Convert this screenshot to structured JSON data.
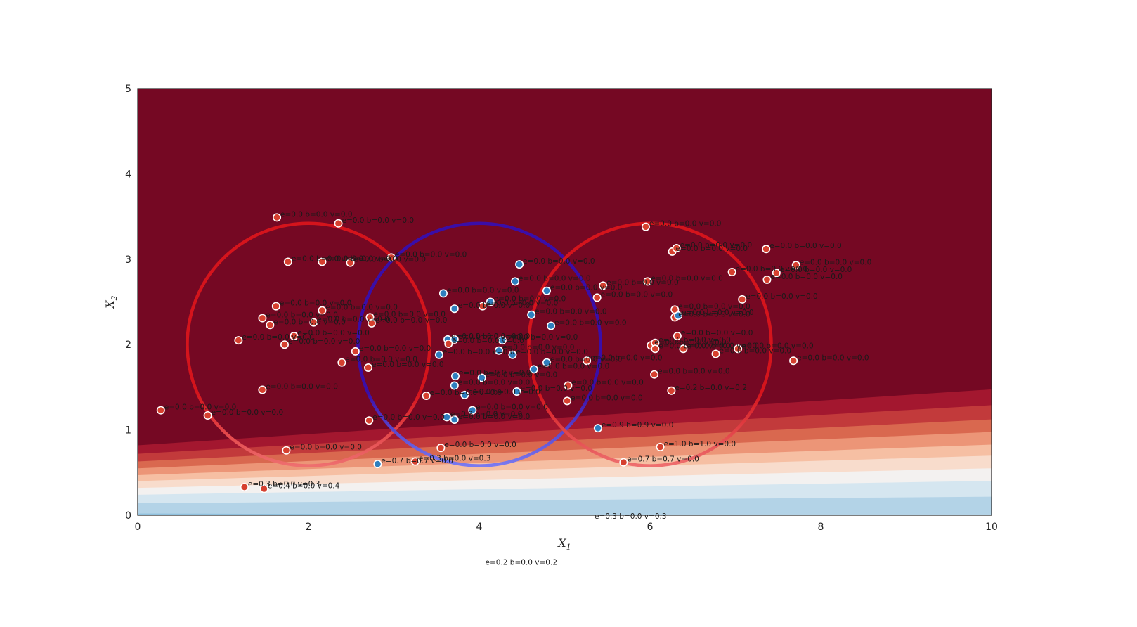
{
  "chart_data": {
    "type": "scatter",
    "title": "",
    "xlabel": "X",
    "xlabel_sub": "1",
    "ylabel": "X",
    "ylabel_sub": "2",
    "xlim": [
      0,
      10
    ],
    "ylim": [
      0,
      5
    ],
    "x_ticks": [
      0,
      2,
      4,
      6,
      8,
      10
    ],
    "y_ticks": [
      0,
      1,
      2,
      3,
      4,
      5
    ],
    "grid": false,
    "colors": {
      "class_red": "#d6402f",
      "class_blue": "#2f7fbf",
      "background_dark_red": "#750823",
      "circle_red": "#d4141c",
      "circle_blue": "#3a0ea8"
    },
    "circles": [
      {
        "cx": 2,
        "cy": 2,
        "r": 1.42,
        "color": "red"
      },
      {
        "cx": 4,
        "cy": 2,
        "r": 1.42,
        "color": "blue"
      },
      {
        "cx": 6,
        "cy": 2,
        "r": 1.42,
        "color": "red"
      }
    ],
    "points": [
      {
        "x": 1.63,
        "y": 3.49,
        "cls": "red",
        "label": "e=0.0 b=0.0 v=0.0"
      },
      {
        "x": 2.35,
        "y": 3.42,
        "cls": "red",
        "label": "e=0.0 b=0.0 v=0.0"
      },
      {
        "x": 2.97,
        "y": 3.02,
        "cls": "red",
        "label": "e=0.0 b=0.0 v=0.0"
      },
      {
        "x": 1.76,
        "y": 2.97,
        "cls": "red",
        "label": "e=0.0 b=0.0 v=0.0"
      },
      {
        "x": 2.16,
        "y": 2.97,
        "cls": "red",
        "label": "e=0.0 b=0.0 v=0.0"
      },
      {
        "x": 2.49,
        "y": 2.96,
        "cls": "red",
        "label": "e=0.0 b=0.0 v=0.0"
      },
      {
        "x": 1.62,
        "y": 2.45,
        "cls": "red",
        "label": "e=0.0 b=0.0 v=0.0"
      },
      {
        "x": 2.16,
        "y": 2.4,
        "cls": "red",
        "label": "e=0.0 b=0.0 v=0.0"
      },
      {
        "x": 1.46,
        "y": 2.31,
        "cls": "red",
        "label": "e=0.0 b=0.0 v=0.0"
      },
      {
        "x": 1.55,
        "y": 2.23,
        "cls": "red",
        "label": "e=0.0 b=0.0 v=0.0"
      },
      {
        "x": 2.06,
        "y": 2.26,
        "cls": "red",
        "label": "e=0.0 b=0.0 v=0.0"
      },
      {
        "x": 2.72,
        "y": 2.32,
        "cls": "red",
        "label": "e=0.0 b=0.0 v=0.0"
      },
      {
        "x": 2.74,
        "y": 2.25,
        "cls": "red",
        "label": "e=0.0 b=0.0 v=0.0"
      },
      {
        "x": 1.83,
        "y": 2.1,
        "cls": "red",
        "label": "e=0.0 b=0.0 v=0.0"
      },
      {
        "x": 1.18,
        "y": 2.05,
        "cls": "red",
        "label": "e=0.0 b=0.0 v=0.0"
      },
      {
        "x": 1.72,
        "y": 2.0,
        "cls": "red",
        "label": "e=0.0 b=0.0 v=0.0"
      },
      {
        "x": 2.55,
        "y": 1.92,
        "cls": "red",
        "label": "e=0.0 b=0.0 v=0.0"
      },
      {
        "x": 2.39,
        "y": 1.79,
        "cls": "red",
        "label": "e=0.0 b=0.0 v=0.0"
      },
      {
        "x": 2.7,
        "y": 1.73,
        "cls": "red",
        "label": "e=0.0 b=0.0 v=0.0"
      },
      {
        "x": 1.46,
        "y": 1.47,
        "cls": "red",
        "label": "e=0.0 b=0.0 v=0.0"
      },
      {
        "x": 0.27,
        "y": 1.23,
        "cls": "red",
        "label": "e=0.0 b=0.0 v=0.0"
      },
      {
        "x": 0.82,
        "y": 1.17,
        "cls": "red",
        "label": "e=0.0 b=0.0 v=0.0"
      },
      {
        "x": 2.71,
        "y": 1.11,
        "cls": "red",
        "label": "e=0.0 b=0.0 v=0.0"
      },
      {
        "x": 1.74,
        "y": 0.76,
        "cls": "red",
        "label": "e=0.0 b=0.0 v=0.0"
      },
      {
        "x": 1.25,
        "y": 0.33,
        "cls": "red",
        "label": "e=0.3 b=0.0 v=0.3"
      },
      {
        "x": 1.48,
        "y": 0.31,
        "cls": "red",
        "label": "e=0.4 b=0.0 v=0.4"
      },
      {
        "x": 3.55,
        "y": 0.79,
        "cls": "red",
        "label": "e=0.0 b=0.0 v=0.0"
      },
      {
        "x": 3.25,
        "y": 0.63,
        "cls": "red",
        "label": "e=0.3 b=0.0 v=0.3"
      },
      {
        "x": 2.81,
        "y": 0.6,
        "cls": "blue",
        "label": "e=0.7 b=0.7 v=0.0"
      },
      {
        "x": 3.38,
        "y": 1.4,
        "cls": "red",
        "label": "e=0.0 b=0.0 v=0.0"
      },
      {
        "x": 3.62,
        "y": 1.15,
        "cls": "blue",
        "label": "e=0.0 b=0.0 v=0.0"
      },
      {
        "x": 3.71,
        "y": 1.12,
        "cls": "blue",
        "label": "e=0.0 b=0.0 v=0.0"
      },
      {
        "x": 3.92,
        "y": 1.23,
        "cls": "blue",
        "label": "e=0.0 b=0.0 v=0.0"
      },
      {
        "x": 3.71,
        "y": 1.52,
        "cls": "blue",
        "label": "e=0.0 b=0.0 v=0.0"
      },
      {
        "x": 3.83,
        "y": 1.41,
        "cls": "blue",
        "label": "e=0.0 b=0.0 v=0.0"
      },
      {
        "x": 3.72,
        "y": 1.63,
        "cls": "blue",
        "label": "e=0.0 b=0.0 v=0.0"
      },
      {
        "x": 4.03,
        "y": 1.61,
        "cls": "blue",
        "label": "e=0.0 b=0.0 v=0.0"
      },
      {
        "x": 3.53,
        "y": 1.88,
        "cls": "blue",
        "label": "e=0.0 b=0.0 v=0.0"
      },
      {
        "x": 3.63,
        "y": 2.06,
        "cls": "blue",
        "label": "e=0.0 b=0.0 v=0.0"
      },
      {
        "x": 3.64,
        "y": 2.01,
        "cls": "red",
        "label": "e=0.0 b=0.0 v=0.0"
      },
      {
        "x": 3.71,
        "y": 2.06,
        "cls": "blue",
        "label": "e=0.0 b=0.0 v=0.0"
      },
      {
        "x": 4.27,
        "y": 2.05,
        "cls": "blue",
        "label": "e=0.0 b=0.0 v=0.0"
      },
      {
        "x": 4.23,
        "y": 1.93,
        "cls": "blue",
        "label": "e=0.0 b=0.0 v=0.0"
      },
      {
        "x": 4.39,
        "y": 1.88,
        "cls": "blue",
        "label": "e=0.0 b=0.0 v=0.0"
      },
      {
        "x": 4.64,
        "y": 1.71,
        "cls": "blue",
        "label": "e=0.0 b=0.0 v=0.0"
      },
      {
        "x": 4.79,
        "y": 1.79,
        "cls": "blue",
        "label": "e=0.0 b=0.0 v=0.0"
      },
      {
        "x": 4.44,
        "y": 1.45,
        "cls": "blue",
        "label": "e=0.0 b=0.0 v=0.0"
      },
      {
        "x": 3.58,
        "y": 2.6,
        "cls": "blue",
        "label": "e=0.0 b=0.0 v=0.0"
      },
      {
        "x": 3.71,
        "y": 2.42,
        "cls": "blue",
        "label": "e=0.0 b=0.0 v=0.0"
      },
      {
        "x": 4.04,
        "y": 2.45,
        "cls": "red",
        "label": "e=0.0 b=0.0 v=0.0"
      },
      {
        "x": 4.13,
        "y": 2.5,
        "cls": "blue",
        "label": "e=0.0 b=0.0 v=0.0"
      },
      {
        "x": 4.42,
        "y": 2.74,
        "cls": "blue",
        "label": "e=0.0 b=0.0 v=0.0"
      },
      {
        "x": 4.47,
        "y": 2.94,
        "cls": "blue",
        "label": "e=0.0 b=0.0 v=0.0"
      },
      {
        "x": 4.79,
        "y": 2.63,
        "cls": "blue",
        "label": "e=0.0 b=0.0 v=0.0"
      },
      {
        "x": 4.61,
        "y": 2.35,
        "cls": "blue",
        "label": "e=0.0 b=0.0 v=0.0"
      },
      {
        "x": 4.84,
        "y": 2.22,
        "cls": "blue",
        "label": "e=0.0 b=0.0 v=0.0"
      },
      {
        "x": 5.04,
        "y": 1.52,
        "cls": "red",
        "label": "e=0.0 b=0.0 v=0.0"
      },
      {
        "x": 5.03,
        "y": 1.34,
        "cls": "red",
        "label": "e=0.0 b=0.0 v=0.0"
      },
      {
        "x": 5.26,
        "y": 1.81,
        "cls": "red",
        "label": "e=0.0 b=0.0 v=0.0"
      },
      {
        "x": 5.39,
        "y": 1.02,
        "cls": "blue",
        "label": "e=0.9 b=0.9 v=0.0"
      },
      {
        "x": 5.38,
        "y": 2.55,
        "cls": "red",
        "label": "e=0.0 b=0.0 v=0.0"
      },
      {
        "x": 5.45,
        "y": 2.69,
        "cls": "red",
        "label": "e=0.0 b=0.0 v=0.0"
      },
      {
        "x": 5.95,
        "y": 3.38,
        "cls": "red",
        "label": "e=0.0 b=0.0 v=0.0"
      },
      {
        "x": 5.97,
        "y": 2.74,
        "cls": "red",
        "label": "e=0.0 b=0.0 v=0.0"
      },
      {
        "x": 6.26,
        "y": 3.09,
        "cls": "red",
        "label": "e=0.0 b=0.0 v=0.0"
      },
      {
        "x": 6.31,
        "y": 3.13,
        "cls": "red",
        "label": "e=0.0 b=0.0 v=0.0"
      },
      {
        "x": 6.29,
        "y": 2.41,
        "cls": "red",
        "label": "e=0.0 b=0.0 v=0.0"
      },
      {
        "x": 6.29,
        "y": 2.32,
        "cls": "red",
        "label": "e=0.0 b=0.0 v=0.0"
      },
      {
        "x": 6.33,
        "y": 2.34,
        "cls": "blue",
        "label": "e=0.0 b=0.0 v=0.0"
      },
      {
        "x": 6.32,
        "y": 2.1,
        "cls": "red",
        "label": "e=0.0 b=0.0 v=0.0"
      },
      {
        "x": 6.01,
        "y": 1.99,
        "cls": "red",
        "label": "e=0.0 b=0.0 v=0.0"
      },
      {
        "x": 6.06,
        "y": 2.02,
        "cls": "red",
        "label": "e=0.0 b=0.0 v=0.0"
      },
      {
        "x": 6.06,
        "y": 1.95,
        "cls": "red",
        "label": "e=0.0 b=0.0 v=0.0"
      },
      {
        "x": 6.39,
        "y": 1.95,
        "cls": "red",
        "label": "e=0.0 b=0.0 v=0.0"
      },
      {
        "x": 6.05,
        "y": 1.65,
        "cls": "red",
        "label": "e=0.0 b=0.0 v=0.0"
      },
      {
        "x": 6.25,
        "y": 1.46,
        "cls": "red",
        "label": "e=0.2 b=0.0 v=0.2"
      },
      {
        "x": 6.12,
        "y": 0.8,
        "cls": "red",
        "label": "e=1.0 b=1.0 v=0.0"
      },
      {
        "x": 5.69,
        "y": 0.62,
        "cls": "red",
        "label": "e=0.7 b=0.7 v=0.0"
      },
      {
        "x": 6.77,
        "y": 1.89,
        "cls": "red",
        "label": "e=0.0 b=0.0 v=0.0"
      },
      {
        "x": 7.03,
        "y": 1.95,
        "cls": "red",
        "label": "e=0.0 b=0.0 v=0.0"
      },
      {
        "x": 6.96,
        "y": 2.85,
        "cls": "red",
        "label": "e=0.0 b=0.0 v=0.0"
      },
      {
        "x": 7.08,
        "y": 2.53,
        "cls": "red",
        "label": "e=0.0 b=0.0 v=0.0"
      },
      {
        "x": 7.36,
        "y": 3.12,
        "cls": "red",
        "label": "e=0.0 b=0.0 v=0.0"
      },
      {
        "x": 7.37,
        "y": 2.76,
        "cls": "red",
        "label": "e=0.0 b=0.0 v=0.0"
      },
      {
        "x": 7.48,
        "y": 2.84,
        "cls": "red",
        "label": "e=0.0 b=0.0 v=0.0"
      },
      {
        "x": 7.71,
        "y": 2.93,
        "cls": "red",
        "label": "e=0.0 b=0.0 v=0.0"
      },
      {
        "x": 7.68,
        "y": 1.81,
        "cls": "red",
        "label": "e=0.0 b=0.0 v=0.0"
      }
    ],
    "outside_labels": [
      {
        "x": 5.35,
        "y": -0.04,
        "label": "e=0.3 b=0.0 v=0.3"
      },
      {
        "x": 4.07,
        "y": -0.58,
        "label": "e=0.2 b=0.0 v=0.2"
      }
    ]
  }
}
